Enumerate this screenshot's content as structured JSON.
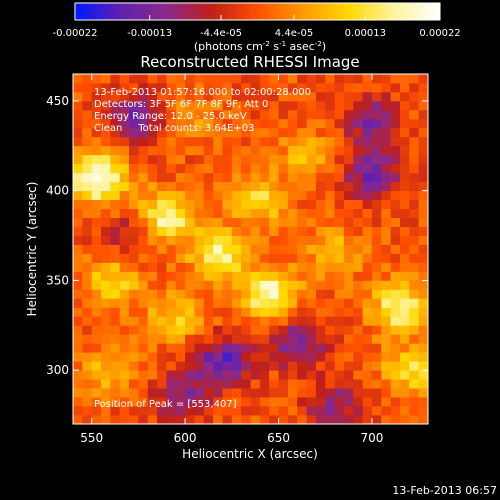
{
  "chart_data": {
    "type": "heatmap",
    "title": "Reconstructed RHESSI Image",
    "xlabel": "Heliocentric X (arcsec)",
    "ylabel": "Heliocentric Y (arcsec)",
    "xlim": [
      540,
      730
    ],
    "ylim": [
      270,
      465
    ],
    "x_ticks": [
      "550",
      "600",
      "650",
      "700"
    ],
    "x_tick_values": [
      550,
      600,
      650,
      700
    ],
    "y_ticks": [
      "300",
      "350",
      "400",
      "450"
    ],
    "y_tick_values": [
      300,
      350,
      400,
      450
    ],
    "colorbar": {
      "range": [
        -0.00022,
        0.00022
      ],
      "tick_labels": [
        "-0.00022",
        "-0.00013",
        "-4.4e-05",
        "4.4e-05",
        "0.00013",
        "0.00022"
      ],
      "tick_values": [
        -0.00022,
        -0.00013,
        -4.4e-05,
        4.4e-05,
        0.00013,
        0.00022
      ],
      "unit_prefix": "(photons cm",
      "unit_exp1": "-2",
      "unit_mid": " s",
      "unit_exp2": "-1",
      "unit_mid2": " asec",
      "unit_exp3": "-2",
      "unit_suffix": ")",
      "colors": [
        "#0018ff",
        "#6020b0",
        "#8a2a8a",
        "#c0201a",
        "#ff5000",
        "#ff9a00",
        "#ffd800",
        "#fff4a0",
        "#ffffff"
      ]
    },
    "annotations": [
      "13-Feb-2013 01:57:16.000 to 02:00:28.000",
      "Detectors: 3F 5F 6F 7F 8F 9F, Att 0",
      "Energy Range: 12.0 - 25.0 keV",
      "Clean     Total counts: 3.64E+03"
    ],
    "peak_label": "Position of Peak = [553,407]",
    "peak": [
      553,
      407
    ],
    "hotspots": [
      {
        "x": 553,
        "y": 407,
        "value": 0.00022
      },
      {
        "x": 590,
        "y": 385,
        "value": 0.00018
      },
      {
        "x": 618,
        "y": 365,
        "value": 0.00016
      },
      {
        "x": 645,
        "y": 343,
        "value": 0.00019
      },
      {
        "x": 640,
        "y": 395,
        "value": 0.00012
      },
      {
        "x": 562,
        "y": 350,
        "value": 0.00011
      },
      {
        "x": 595,
        "y": 330,
        "value": 0.0001
      },
      {
        "x": 680,
        "y": 365,
        "value": 9e-05
      },
      {
        "x": 665,
        "y": 420,
        "value": 8e-05
      },
      {
        "x": 715,
        "y": 335,
        "value": 0.00017
      },
      {
        "x": 720,
        "y": 300,
        "value": 0.00012
      },
      {
        "x": 560,
        "y": 300,
        "value": 9e-05
      },
      {
        "x": 600,
        "y": 440,
        "value": 7e-05
      }
    ],
    "coldspots": [
      {
        "x": 575,
        "y": 440,
        "value": -0.00015
      },
      {
        "x": 620,
        "y": 305,
        "value": -0.00016
      },
      {
        "x": 660,
        "y": 315,
        "value": -0.00013
      },
      {
        "x": 700,
        "y": 410,
        "value": -0.00014
      },
      {
        "x": 700,
        "y": 440,
        "value": -0.00012
      },
      {
        "x": 680,
        "y": 280,
        "value": -0.0001
      },
      {
        "x": 600,
        "y": 285,
        "value": -0.00012
      },
      {
        "x": 570,
        "y": 375,
        "value": -8e-05
      }
    ]
  },
  "footer_timestamp": "13-Feb-2013 06:57"
}
